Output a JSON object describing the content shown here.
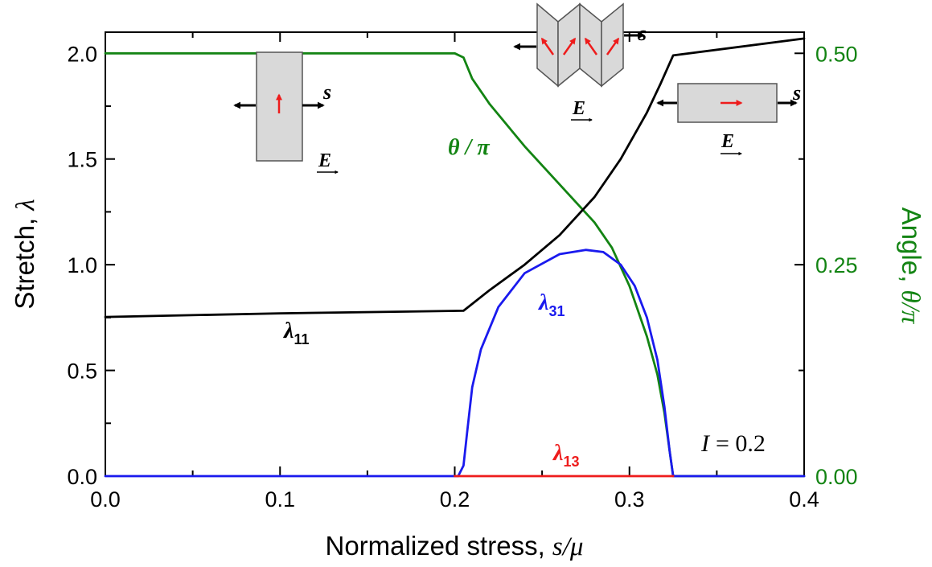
{
  "chart_data": {
    "type": "line",
    "x_axis": {
      "label_text": "Normalized stress, ",
      "label_symbol": "s/μ",
      "range": [
        0.0,
        0.4
      ],
      "ticks": [
        0.0,
        0.1,
        0.2,
        0.3,
        0.4
      ],
      "tick_labels": [
        "0.0",
        "0.1",
        "0.2",
        "0.3",
        "0.4"
      ],
      "minor_step": 0.05
    },
    "y_axis_left": {
      "label_text": "Stretch, ",
      "label_symbol": "λ",
      "range": [
        0.0,
        2.1
      ],
      "ticks": [
        0.0,
        0.5,
        1.0,
        1.5,
        2.0
      ],
      "tick_labels": [
        "0.0",
        "0.5",
        "1.0",
        "1.5",
        "2.0"
      ],
      "minor_step": 0.25
    },
    "y_axis_right": {
      "label_text": "Angle, ",
      "label_symbol": "θ/π",
      "range": [
        0.0,
        0.525
      ],
      "ticks": [
        0.0,
        0.25,
        0.5
      ],
      "tick_labels": [
        "0.00",
        "0.25",
        "0.50"
      ],
      "minor_step": 0.125,
      "color": "#138413"
    },
    "grid": false,
    "series": [
      {
        "name": "λ11",
        "axis": "left",
        "color": "#000000",
        "x": [
          0.0,
          0.1,
          0.205,
          0.22,
          0.24,
          0.26,
          0.28,
          0.295,
          0.31,
          0.318,
          0.325,
          0.4
        ],
        "y": [
          0.753,
          0.77,
          0.782,
          0.88,
          1.0,
          1.14,
          1.32,
          1.5,
          1.72,
          1.86,
          1.99,
          2.07
        ]
      },
      {
        "name": "λ31",
        "axis": "left",
        "color": "#1a1aee",
        "x": [
          0.0,
          0.202,
          0.205,
          0.207,
          0.21,
          0.215,
          0.225,
          0.24,
          0.26,
          0.275,
          0.285,
          0.295,
          0.303,
          0.31,
          0.316,
          0.32,
          0.323,
          0.325,
          0.4
        ],
        "y": [
          0.0,
          0.0,
          0.05,
          0.2,
          0.42,
          0.6,
          0.8,
          0.96,
          1.05,
          1.07,
          1.06,
          1.0,
          0.9,
          0.75,
          0.55,
          0.33,
          0.12,
          0.0,
          0.0
        ]
      },
      {
        "name": "λ13",
        "axis": "left",
        "color": "#ee1c1c",
        "x": [
          0.2,
          0.325
        ],
        "y": [
          0.0,
          0.0
        ]
      },
      {
        "name": "θ/π",
        "axis": "right",
        "color": "#138413",
        "x": [
          0.0,
          0.2,
          0.205,
          0.21,
          0.22,
          0.24,
          0.26,
          0.28,
          0.29,
          0.3,
          0.31,
          0.316,
          0.32,
          0.323,
          0.325,
          0.4
        ],
        "y": [
          0.5,
          0.5,
          0.495,
          0.47,
          0.44,
          0.39,
          0.345,
          0.3,
          0.27,
          0.225,
          0.165,
          0.12,
          0.075,
          0.03,
          0.0,
          0.0
        ]
      }
    ],
    "annotations": {
      "theta": "θ / π",
      "lambda": "λ",
      "lambda11_sub": "11",
      "lambda31_sub": "31",
      "lambda13_sub": "13",
      "I_label": "I",
      "I_value": "= 0.2",
      "s_label": "s",
      "E_label": "E"
    }
  },
  "colors": {
    "black": "#000000",
    "blue": "#1a1aee",
    "red": "#ee1c1c",
    "green": "#138413",
    "panel_fill": "#d9d9d9",
    "panel_stroke": "#555555"
  }
}
